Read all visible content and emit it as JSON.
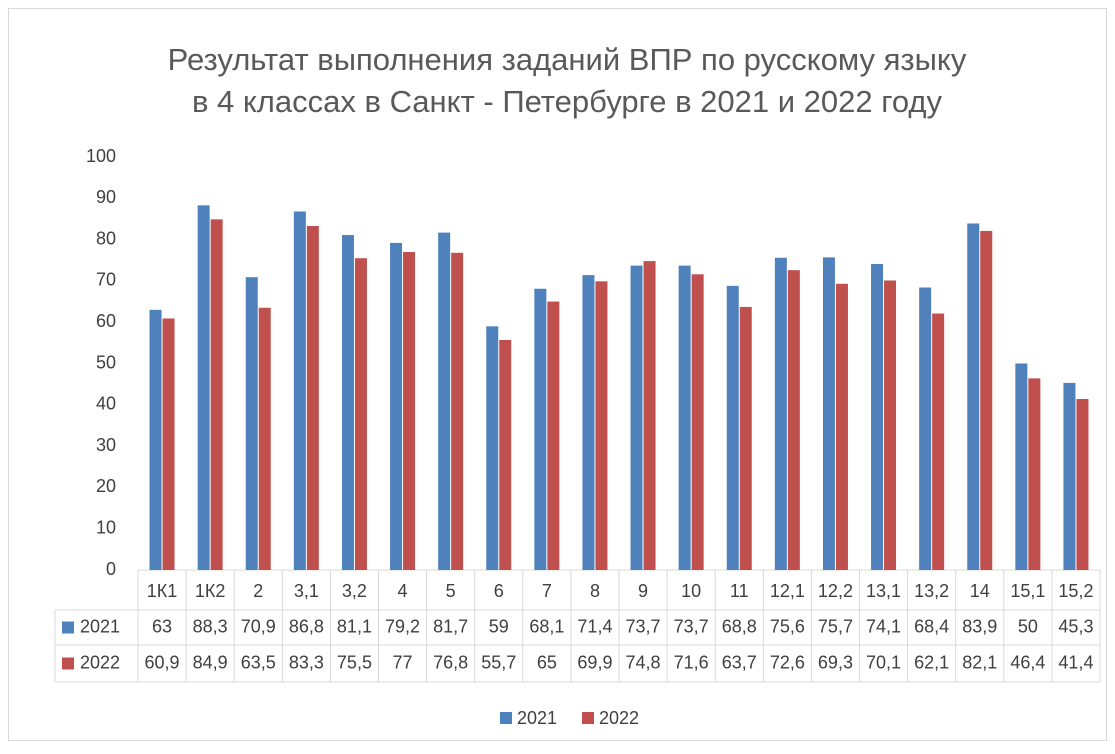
{
  "chart_data": {
    "type": "bar",
    "title": [
      "Результат выполнения заданий ВПР по русскому языку",
      "в 4 классах в Санкт - Петербурге в 2021 и 2022 году"
    ],
    "categories": [
      "1К1",
      "1К2",
      "2",
      "3,1",
      "3,2",
      "4",
      "5",
      "6",
      "7",
      "8",
      "9",
      "10",
      "11",
      "12,1",
      "12,2",
      "13,1",
      "13,2",
      "14",
      "15,1",
      "15,2"
    ],
    "series": [
      {
        "name": "2021",
        "color": "#4f81bd",
        "values": [
          63,
          88.3,
          70.9,
          86.8,
          81.1,
          79.2,
          81.7,
          59,
          68.1,
          71.4,
          73.7,
          73.7,
          68.8,
          75.6,
          75.7,
          74.1,
          68.4,
          83.9,
          50,
          45.3
        ],
        "value_labels": [
          "63",
          "88,3",
          "70,9",
          "86,8",
          "81,1",
          "79,2",
          "81,7",
          "59",
          "68,1",
          "71,4",
          "73,7",
          "73,7",
          "68,8",
          "75,6",
          "75,7",
          "74,1",
          "68,4",
          "83,9",
          "50",
          "45,3"
        ]
      },
      {
        "name": "2022",
        "color": "#c0504d",
        "values": [
          60.9,
          84.9,
          63.5,
          83.3,
          75.5,
          77,
          76.8,
          55.7,
          65,
          69.9,
          74.8,
          71.6,
          63.7,
          72.6,
          69.3,
          70.1,
          62.1,
          82.1,
          46.4,
          41.4
        ],
        "value_labels": [
          "60,9",
          "84,9",
          "63,5",
          "83,3",
          "75,5",
          "77",
          "76,8",
          "55,7",
          "65",
          "69,9",
          "74,8",
          "71,6",
          "63,7",
          "72,6",
          "69,3",
          "70,1",
          "62,1",
          "82,1",
          "46,4",
          "41,4"
        ]
      }
    ],
    "ylim": [
      0,
      100
    ],
    "yticks": [
      0,
      10,
      20,
      30,
      40,
      50,
      60,
      70,
      80,
      90,
      100
    ],
    "grid": false,
    "legend": "bottom",
    "data_table": true
  }
}
